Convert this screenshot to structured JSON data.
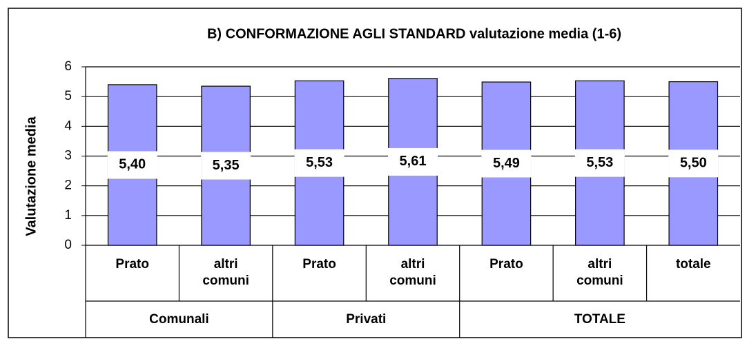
{
  "chart_data": {
    "type": "bar",
    "title": "B) CONFORMAZIONE  AGLI STANDARD  valutazione media (1-6)",
    "y_label": "Valutazione media",
    "groups": [
      {
        "name": "Comunali",
        "categories": [
          "Prato",
          "altri comuni"
        ]
      },
      {
        "name": "Privati",
        "categories": [
          "Prato",
          "altri comuni"
        ]
      },
      {
        "name": "TOTALE",
        "categories": [
          "Prato",
          "altri comuni",
          "totale"
        ]
      }
    ],
    "values": [
      5.4,
      5.35,
      5.53,
      5.61,
      5.49,
      5.53,
      5.5
    ],
    "value_labels": [
      "5,40",
      "5,35",
      "5,53",
      "5,61",
      "5,49",
      "5,53",
      "5,50"
    ],
    "color": "#9999ff",
    "ylim": [
      0,
      6
    ],
    "yticks": [
      0,
      1,
      2,
      3,
      4,
      5,
      6
    ],
    "grid": true
  }
}
